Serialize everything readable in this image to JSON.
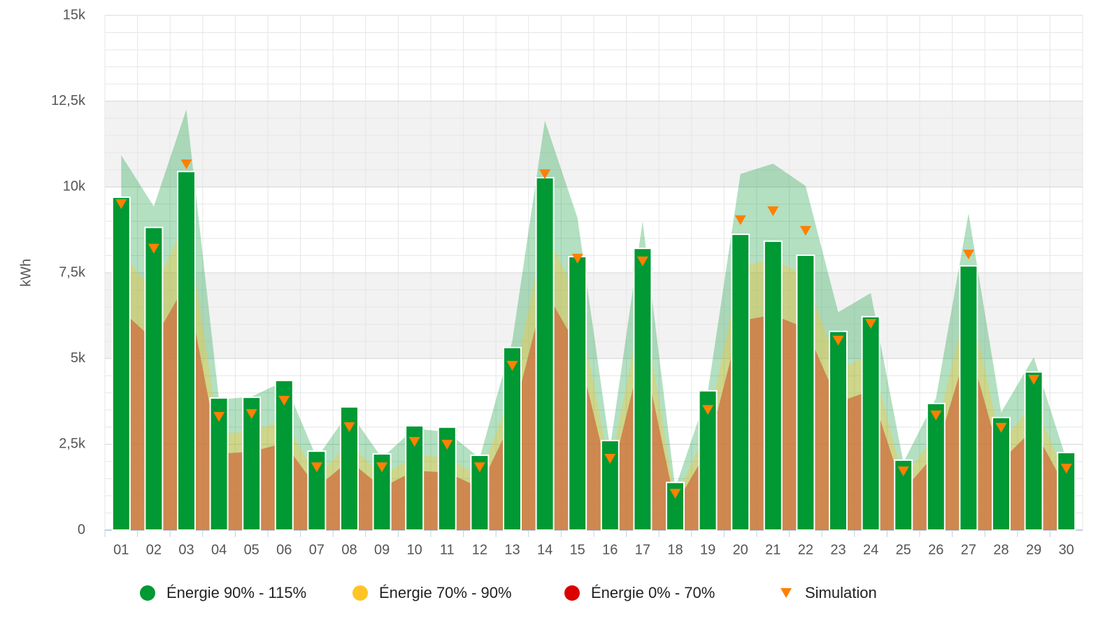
{
  "chart_data": {
    "type": "bar",
    "y_label": "kWh",
    "categories": [
      "01",
      "02",
      "03",
      "04",
      "05",
      "06",
      "07",
      "08",
      "09",
      "10",
      "11",
      "12",
      "13",
      "14",
      "15",
      "16",
      "17",
      "18",
      "19",
      "20",
      "21",
      "22",
      "23",
      "24",
      "25",
      "26",
      "27",
      "28",
      "29",
      "30"
    ],
    "ylim": [
      0,
      15000
    ],
    "yticks": [
      0,
      {
        "value": 2500,
        "label": "2,5k"
      },
      {
        "value": 5000,
        "label": "5k"
      },
      {
        "value": 7500,
        "label": "7,5k"
      },
      {
        "value": 10000,
        "label": "10k"
      },
      {
        "value": 12500,
        "label": "12,5k"
      },
      {
        "value": 15000,
        "label": "15k"
      }
    ],
    "grid": true,
    "series": [
      {
        "name": "Énergie 90% - 115%",
        "color": "#009933",
        "values": [
          9700,
          8820,
          10450,
          3850,
          3870,
          4360,
          2300,
          3590,
          2220,
          3040,
          3000,
          2180,
          5320,
          10270,
          7970,
          2610,
          8210,
          1390,
          4060,
          8620,
          8420,
          8010,
          5790,
          6220,
          2040,
          3690,
          7700,
          3280,
          4610,
          2260
        ]
      },
      {
        "name": "Énergie 70% - 90%",
        "color": "#ffc425"
      },
      {
        "name": "Énergie 0% - 70%",
        "color": "#dd0000"
      },
      {
        "name": "Simulation",
        "color": "#ff8000",
        "values": [
          9500,
          8200,
          10660,
          3300,
          3380,
          3770,
          1830,
          3000,
          1830,
          2570,
          2490,
          1830,
          4790,
          10370,
          7910,
          2080,
          7830,
          1060,
          3500,
          9030,
          9290,
          8720,
          5520,
          6010,
          1710,
          3340,
          8030,
          2980,
          4380,
          1790
        ]
      }
    ],
    "bands": [
      {
        "color": "rgba(0,153,51,0.3)",
        "values": [
          10930,
          9430,
          12260,
          3800,
          3890,
          4340,
          2100,
          3450,
          2100,
          2960,
          2860,
          2100,
          5510,
          11930,
          9100,
          2390,
          9000,
          1220,
          4030,
          10380,
          10680,
          10030,
          6350,
          6910,
          1970,
          3840,
          9230,
          3430,
          5040,
          2060
        ]
      },
      {
        "color": "rgba(255,196,37,0.35)",
        "values": [
          8080,
          6970,
          9060,
          2810,
          2870,
          3200,
          1560,
          2550,
          1560,
          2180,
          2120,
          1560,
          4070,
          8810,
          6720,
          1770,
          6660,
          900,
          2980,
          7680,
          7900,
          7410,
          4690,
          5110,
          1450,
          2840,
          6830,
          2530,
          3720,
          1520
        ]
      },
      {
        "color": "rgba(205,110,60,0.75)",
        "values": [
          6410,
          5540,
          7200,
          2230,
          2280,
          2540,
          1240,
          2030,
          1240,
          1730,
          1680,
          1240,
          3230,
          7000,
          5340,
          1400,
          5290,
          720,
          2360,
          6100,
          6270,
          5890,
          3730,
          4060,
          1150,
          2250,
          5420,
          2010,
          2960,
          1210
        ]
      }
    ]
  }
}
